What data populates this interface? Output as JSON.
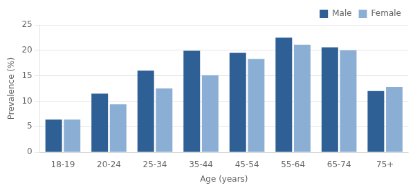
{
  "chart_data": {
    "type": "bar",
    "categories": [
      "18-19",
      "20-24",
      "25-34",
      "35-44",
      "45-54",
      "55-64",
      "65-74",
      "75+"
    ],
    "series": [
      {
        "name": "Male",
        "color": "#2E6096",
        "values": [
          6.4,
          11.5,
          16.0,
          19.9,
          19.5,
          22.5,
          20.6,
          12.0
        ]
      },
      {
        "name": "Female",
        "color": "#8BAFD4",
        "values": [
          6.4,
          9.4,
          12.5,
          15.1,
          18.3,
          21.1,
          20.0,
          12.8
        ]
      }
    ],
    "xlabel": "Age (years)",
    "ylabel": "Prevalence (%)",
    "ylim": [
      0,
      25
    ],
    "yticks": [
      0,
      5,
      10,
      15,
      20,
      25
    ],
    "grid": true,
    "legend": "upper right"
  }
}
